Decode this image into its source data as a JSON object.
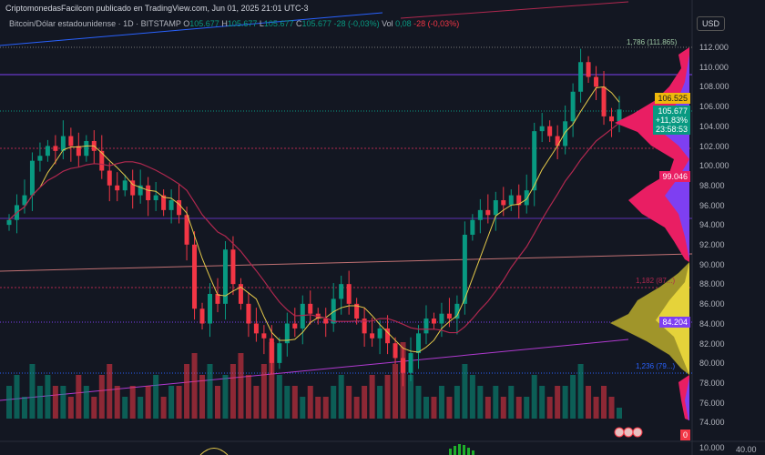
{
  "header": {
    "published": "CriptomonedasFacilcom publicado en TradingView.com, Jun 01, 2025 21:01 UTC-3",
    "symbol": "Bitcoin/Dólar estadounidense · 1D · BITSTAMP",
    "o": "105.677",
    "h": "105.677",
    "l": "105.677",
    "c": "105.677",
    "change": "-28 (-0,03%)",
    "vol_label": "Vol",
    "vol": "0,08",
    "vol_change": "-28 (-0,03%)"
  },
  "currency_button": "USD",
  "price_axis": [
    "112.000",
    "110.000",
    "108.000",
    "106.000",
    "104.000",
    "102.000",
    "100.000",
    "98.000",
    "96.000",
    "94.000",
    "92.000",
    "90.000",
    "88.000",
    "86.000",
    "84.000",
    "82.000",
    "80.000",
    "78.000",
    "76.000",
    "74.000"
  ],
  "volume_axis": [
    "10.000",
    "40.00"
  ],
  "badges": {
    "ma_value": "106.525",
    "last_price": "105.677",
    "change_pct": "+11,83%",
    "countdown": "23:58:53",
    "ma2_value": "99.046",
    "poc": "84.204",
    "zero": "0"
  },
  "annotations": {
    "top": "1,786 (111.865)",
    "mid": "1,182 (87...)",
    "low": "1,236 (79...)"
  },
  "colors": {
    "up": "#089981",
    "down": "#f23645",
    "ma_fast": "#e5c94a",
    "ma_slow": "#b0284f",
    "profile_pink": "#e91e63",
    "profile_purple": "#7e3ff2",
    "profile_yellow": "#e5d33a"
  },
  "chart_data": {
    "type": "candlestick",
    "ylim": [
      73,
      113
    ],
    "y_ticks_step": 2000,
    "closes": [
      94.5,
      96,
      97,
      100.5,
      101,
      102,
      101.5,
      103,
      102,
      101,
      102.5,
      101.5,
      99.5,
      98,
      97.5,
      98.5,
      97,
      98,
      96.5,
      97,
      95.5,
      96.5,
      95,
      92,
      85.5,
      84,
      87,
      86,
      91.5,
      88,
      86,
      84,
      83,
      82.5,
      80,
      82,
      84,
      83.5,
      86,
      85,
      84.5,
      84,
      86.5,
      88,
      86,
      84.5,
      83,
      82.5,
      83.5,
      82,
      80.5,
      79,
      81,
      83,
      84.5,
      84,
      85,
      84.5,
      86,
      93,
      94.5,
      95.5,
      95,
      96.5,
      96,
      97,
      96,
      97.5,
      103.5,
      104,
      103,
      102,
      104.5,
      107.5,
      110.5,
      109,
      108,
      105,
      104.5,
      105.7
    ],
    "volumes": [
      3,
      4,
      2,
      5,
      3,
      4,
      3,
      3,
      2,
      4,
      3,
      2,
      4,
      5,
      3,
      2,
      3,
      2,
      3,
      4,
      2,
      3,
      3,
      5,
      6,
      4,
      5,
      3,
      4,
      5,
      6,
      4,
      3,
      5,
      7,
      4,
      3,
      3,
      2,
      3,
      2,
      2,
      3,
      4,
      3,
      2,
      3,
      4,
      3,
      4,
      5,
      7,
      4,
      3,
      2,
      2,
      3,
      2,
      3,
      5,
      4,
      3,
      2,
      3,
      2,
      3,
      2,
      2,
      4,
      3,
      2,
      3,
      3,
      4,
      5,
      3,
      2,
      3,
      2,
      1
    ],
    "moving_averages": [
      "fast",
      "slow"
    ]
  }
}
